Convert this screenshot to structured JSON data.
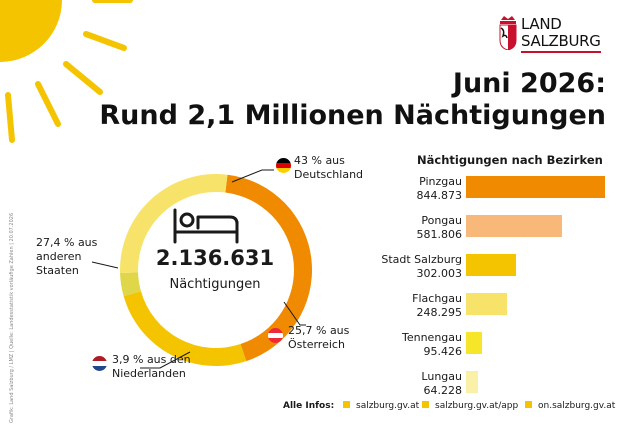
{
  "brand": {
    "line1": "LAND",
    "line2": "SALZBURG"
  },
  "title_line1": "Juni 2026:",
  "title_line2": "Rund 2,1 Millionen Nächtigungen",
  "credit": "Grafik: Land Salzburg / LMZ | Quelle: Landesstatistik vorläufige Zahlen | 20.07.2026",
  "total": {
    "value": "2.136.631",
    "label": "Nächtigungen"
  },
  "colors": {
    "orange": "#f08a00",
    "light_orange": "#f7b879",
    "yellow": "#f5c400",
    "light_yellow": "#f8e36a",
    "pale_yellow": "#faf0a8",
    "green_yellow": "#dfd64a"
  },
  "chart_data": [
    {
      "type": "pie",
      "style": "donut",
      "slices": [
        {
          "label": "43 % aus Deutschland",
          "value": 43,
          "color": "#f08a00",
          "flag": "germany-flag"
        },
        {
          "label": "25,7 % aus Österreich",
          "value": 25.7,
          "color": "#f5c400",
          "flag": "austria-flag"
        },
        {
          "label": "3,9 % aus den Niederlanden",
          "value": 3.9,
          "color": "#dfd64a",
          "flag": "netherlands-flag"
        },
        {
          "label": "27,4 % aus anderen Staaten",
          "value": 27.4,
          "color": "#f8e36a"
        }
      ],
      "center_value": "2.136.631",
      "center_label": "Nächtigungen"
    },
    {
      "type": "bar",
      "orientation": "horizontal",
      "title": "Nächtigungen nach Bezirken",
      "categories": [
        "Pinzgau",
        "Pongau",
        "Stadt Salzburg",
        "Flachgau",
        "Tennengau",
        "Lungau"
      ],
      "values": [
        844873,
        581806,
        302003,
        248295,
        95426,
        64228
      ],
      "value_labels": [
        "844.873",
        "581.806",
        "302.003",
        "248.295",
        "95.426",
        "64.228"
      ],
      "colors": [
        "#f08a00",
        "#f7b879",
        "#f5c400",
        "#f8e36a",
        "#f7e52a",
        "#faf0a8"
      ]
    }
  ],
  "donut_labels": {
    "de": [
      "43 % aus",
      "Deutschland"
    ],
    "at": [
      "25,7 % aus",
      "Österreich"
    ],
    "nl": [
      "3,9 % aus den",
      "Niederlanden"
    ],
    "other": [
      "27,4 % aus",
      "anderen",
      "Staaten"
    ]
  },
  "footer": {
    "label": "Alle Infos:",
    "links": [
      "salzburg.gv.at",
      "salzburg.gv.at/app",
      "on.salzburg.gv.at"
    ]
  }
}
